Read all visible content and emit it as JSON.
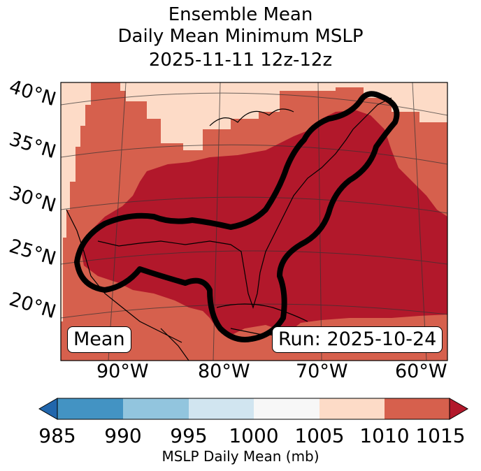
{
  "title": {
    "line1": "Ensemble Mean",
    "line2": "Daily Mean Minimum MSLP",
    "line3": "2025-11-11 12z-12z"
  },
  "lat_labels": [
    "40°N",
    "35°N",
    "30°N",
    "25°N",
    "20°N"
  ],
  "lon_labels": [
    "90°W",
    "80°W",
    "70°W",
    "60°W"
  ],
  "annotations": {
    "left": "Mean",
    "right": "Run: 2025-10-24"
  },
  "colorbar": {
    "label": "MSLP Daily Mean (mb)",
    "ticks": [
      "985",
      "990",
      "995",
      "1000",
      "1005",
      "1010",
      "1015"
    ],
    "colors": [
      "#2166ac",
      "#4393c3",
      "#92c5de",
      "#d1e5f0",
      "#f7f7f7",
      "#fddbc7",
      "#d6604d",
      "#b2182b"
    ]
  },
  "chart_data": {
    "type": "heatmap",
    "title": "Ensemble Mean Daily Mean Minimum MSLP 2025-11-11 12z-12z",
    "variable": "MSLP Daily Mean (mb)",
    "levels": [
      985,
      990,
      995,
      1000,
      1005,
      1010,
      1015
    ],
    "extend": "both",
    "regions": [
      {
        "range": "1005-1010",
        "area": "northwest interior and Canada"
      },
      {
        "range": "1010-1015",
        "area": "continental US east, Gulf and Caribbean margins"
      },
      {
        "range": ">1015",
        "area": "Gulf of Mexico, Florida, western Atlantic"
      }
    ],
    "contour": "black highlighted region around Gulf Coast and US East Coast"
  }
}
